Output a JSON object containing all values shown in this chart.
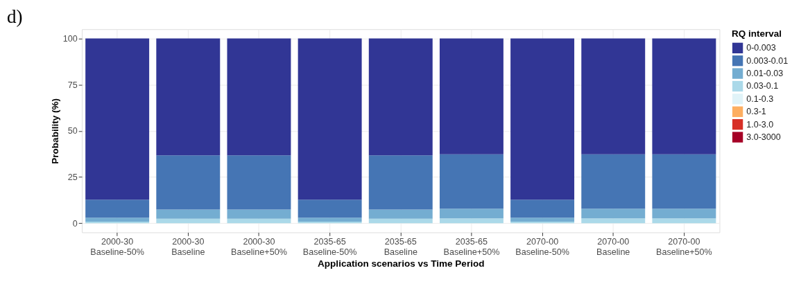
{
  "chart_data": {
    "type": "bar",
    "stacked": true,
    "title": "d)",
    "xlabel": "Application scenarios vs Time Period",
    "ylabel": "Probability (%)",
    "legend_title": "RQ interval",
    "legend": "right",
    "grid": true,
    "categories": [
      "2000-30\nBaseline-50%",
      "2000-30\nBaseline",
      "2000-30\nBaseline+50%",
      "2035-65\nBaseline-50%",
      "2035-65\nBaseline",
      "2035-65\nBaseline+50%",
      "2070-00\nBaseline-50%",
      "2070-00\nBaseline",
      "2070-00\nBaseline+50%"
    ],
    "ylim": [
      -5,
      105
    ],
    "yticks": [
      0,
      25,
      50,
      75,
      100
    ],
    "series": [
      {
        "name": "3.0-3000",
        "color": "#a50026",
        "values": [
          0,
          0,
          0,
          0,
          0,
          0,
          0,
          0,
          0
        ]
      },
      {
        "name": "1.0-3.0",
        "color": "#d73027",
        "values": [
          0,
          0,
          0,
          0,
          0,
          0,
          0,
          0,
          0
        ]
      },
      {
        "name": "0.3-1",
        "color": "#fdae61",
        "values": [
          0,
          0,
          0,
          0,
          0,
          0,
          0,
          0,
          0
        ]
      },
      {
        "name": "0.1-0.3",
        "color": "#e0f3f8",
        "values": [
          0,
          0,
          0,
          0,
          0,
          0,
          0,
          0,
          0
        ]
      },
      {
        "name": "0.03-0.1",
        "color": "#abd9e9",
        "values": [
          0.8,
          2.4,
          2.4,
          0.8,
          2.4,
          2.6,
          0.8,
          2.6,
          2.6
        ]
      },
      {
        "name": "0.01-0.03",
        "color": "#74add1",
        "values": [
          2.2,
          5.0,
          5.0,
          2.2,
          5.0,
          5.2,
          2.2,
          5.2,
          5.2
        ]
      },
      {
        "name": "0.003-0.01",
        "color": "#4575b4",
        "values": [
          9.7,
          29.3,
          29.3,
          9.7,
          29.3,
          29.5,
          9.7,
          29.5,
          29.5
        ]
      },
      {
        "name": "0-0.003",
        "color": "#313695",
        "values": [
          87.3,
          63.3,
          63.3,
          87.3,
          63.3,
          62.7,
          87.3,
          62.7,
          62.7
        ]
      }
    ]
  }
}
